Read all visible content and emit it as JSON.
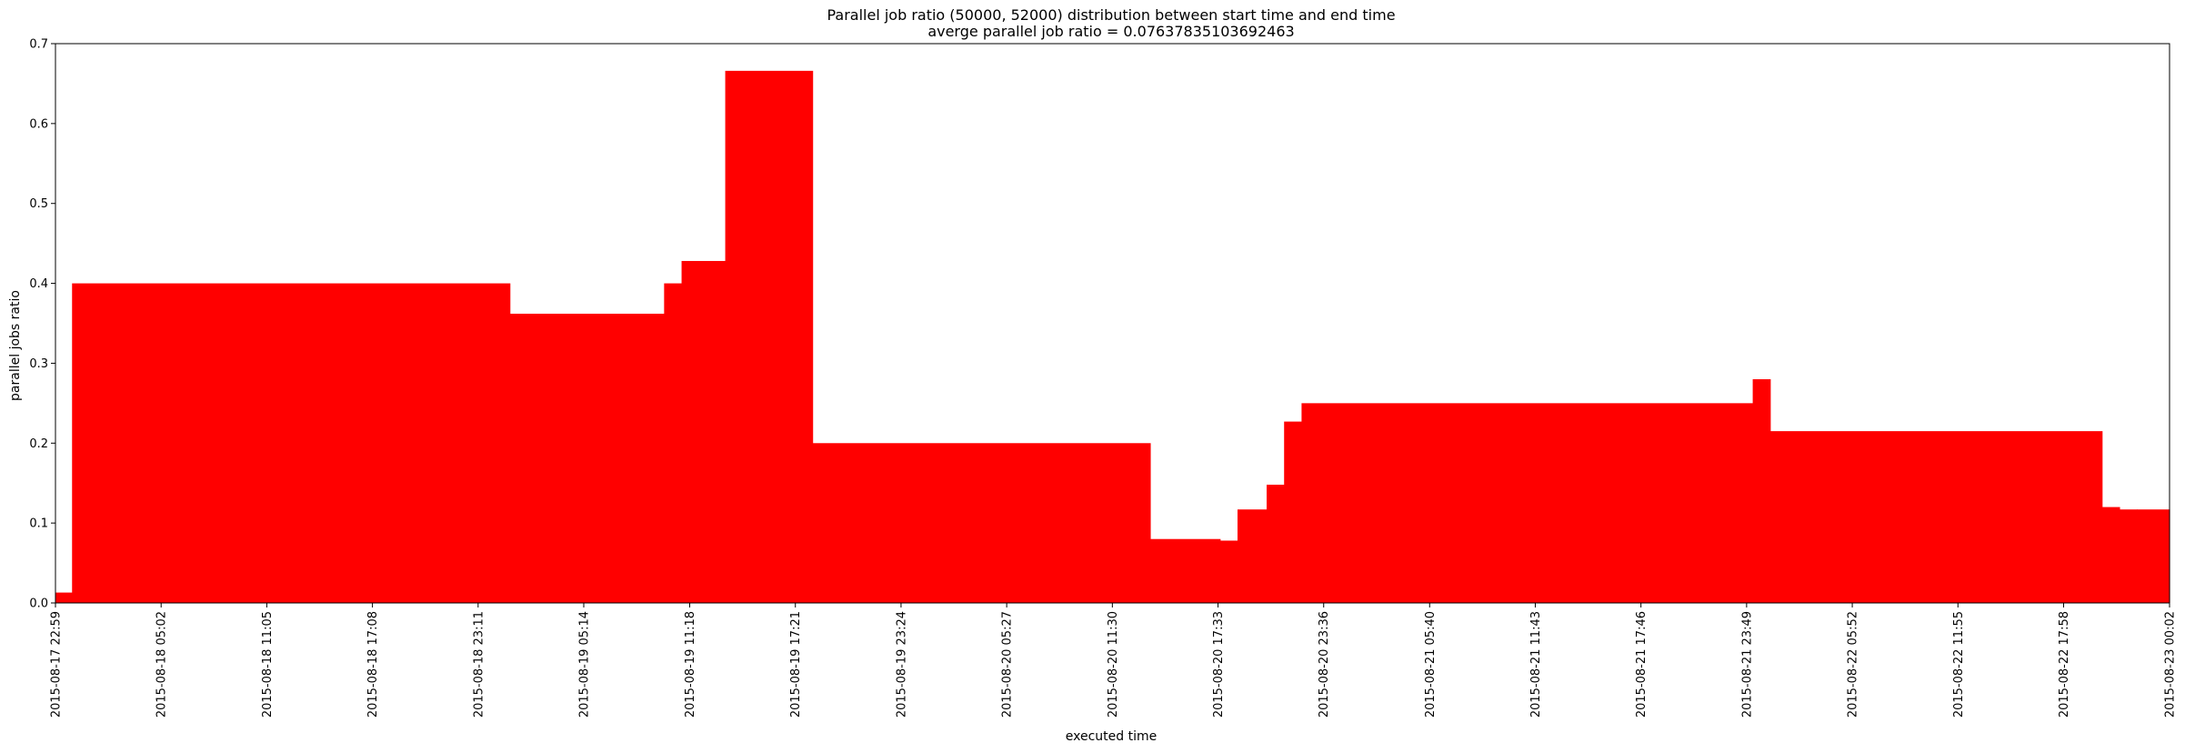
{
  "chart_data": {
    "type": "area",
    "title": "Parallel job ratio (50000, 52000) distribution between start time and end time",
    "subtitle": "averge parallel job ratio = 0.07637835103692463",
    "xlabel": "executed time",
    "ylabel": "parallel jobs ratio",
    "ylim": [
      0,
      0.7
    ],
    "yticks": [
      "0.0",
      "0.1",
      "0.2",
      "0.3",
      "0.4",
      "0.5",
      "0.6",
      "0.7"
    ],
    "xlim": [
      "2015-08-17 22:59",
      "2015-08-23 00:02"
    ],
    "xticks": [
      "2015-08-17 22:59",
      "2015-08-18 05:02",
      "2015-08-18 11:05",
      "2015-08-18 17:08",
      "2015-08-18 23:11",
      "2015-08-19 05:14",
      "2015-08-19 11:18",
      "2015-08-19 17:21",
      "2015-08-19 23:24",
      "2015-08-20 05:27",
      "2015-08-20 11:30",
      "2015-08-20 17:33",
      "2015-08-20 23:36",
      "2015-08-21 05:40",
      "2015-08-21 11:43",
      "2015-08-21 17:46",
      "2015-08-21 23:49",
      "2015-08-22 05:52",
      "2015-08-22 11:55",
      "2015-08-22 17:58",
      "2015-08-23 00:02"
    ],
    "grid": false,
    "color": "#ff0000",
    "step": "post",
    "x": [
      "2015-08-17 22:59",
      "2015-08-17 23:56",
      "2015-08-19 01:00",
      "2015-08-19 09:50",
      "2015-08-19 10:50",
      "2015-08-19 13:20",
      "2015-08-19 18:20",
      "2015-08-20 13:40",
      "2015-08-20 17:40",
      "2015-08-20 18:40",
      "2015-08-20 20:20",
      "2015-08-20 21:20",
      "2015-08-20 22:20",
      "2015-08-22 00:10",
      "2015-08-22 01:10",
      "2015-08-22 20:10",
      "2015-08-22 21:10",
      "2015-08-22 22:10",
      "2015-08-23 00:02"
    ],
    "values": [
      0.013,
      0.4,
      0.362,
      0.4,
      0.428,
      0.666,
      0.2,
      0.08,
      0.078,
      0.117,
      0.148,
      0.227,
      0.25,
      0.28,
      0.215,
      0.12,
      0.117,
      0.117,
      0.117
    ]
  }
}
